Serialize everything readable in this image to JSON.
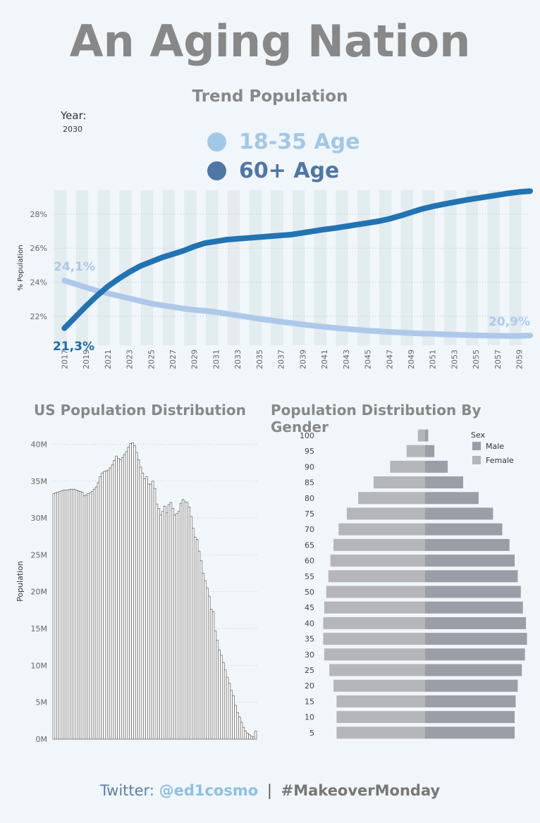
{
  "title": "An Aging Nation",
  "trend_title": "Trend Population",
  "year_filter": {
    "label": "Year:",
    "value": "2030"
  },
  "legend": [
    {
      "label": "18-35 Age",
      "color": "#a2c8e8"
    },
    {
      "label": "60+ Age",
      "color": "#4f76a6"
    }
  ],
  "distribution_title": "US Population Distribution",
  "gender_title": "Population Distribution By Gender",
  "footer": {
    "prefix": "Twitter:",
    "handle": "@ed1cosmo",
    "separator": "|",
    "hashtag": "#MakeoverMonday"
  },
  "chart_data": [
    {
      "type": "line",
      "ylabel": "% Population",
      "ylim": [
        20.3,
        29.4
      ],
      "yticks": [
        "22%",
        "24%",
        "26%",
        "28%"
      ],
      "x_tick_labels": [
        "2017",
        "2019",
        "2021",
        "2023",
        "2025",
        "2027",
        "2029",
        "2031",
        "2033",
        "2035",
        "2037",
        "2039",
        "2041",
        "2043",
        "2045",
        "2047",
        "2049",
        "2051",
        "2053",
        "2055",
        "2057",
        "2059"
      ],
      "x_start": 2016,
      "x_end": 2060,
      "series": [
        {
          "name": "18-35 Age",
          "color": "#aec8ea",
          "start_label": "24,1%",
          "end_label": "20,9%",
          "values": [
            24.1,
            23.9,
            23.7,
            23.5,
            23.35,
            23.2,
            23.05,
            22.9,
            22.75,
            22.65,
            22.55,
            22.45,
            22.38,
            22.32,
            22.25,
            22.15,
            22.05,
            21.95,
            21.85,
            21.77,
            21.68,
            21.6,
            21.52,
            21.45,
            21.38,
            21.32,
            21.26,
            21.21,
            21.16,
            21.12,
            21.08,
            21.05,
            21.02,
            20.99,
            20.97,
            20.94,
            20.92,
            20.9,
            20.88,
            20.87,
            20.86,
            20.85,
            20.85,
            20.88
          ]
        },
        {
          "name": "60+ Age",
          "color": "#2273b2",
          "start_label": "21,3%",
          "values": [
            21.3,
            21.95,
            22.6,
            23.2,
            23.75,
            24.2,
            24.6,
            24.95,
            25.2,
            25.45,
            25.65,
            25.85,
            26.1,
            26.3,
            26.4,
            26.5,
            26.55,
            26.6,
            26.65,
            26.7,
            26.75,
            26.8,
            26.9,
            27.0,
            27.1,
            27.18,
            27.28,
            27.38,
            27.48,
            27.58,
            27.72,
            27.9,
            28.1,
            28.3,
            28.45,
            28.58,
            28.7,
            28.82,
            28.92,
            29.02,
            29.12,
            29.22,
            29.3,
            29.35
          ]
        }
      ]
    },
    {
      "type": "bar",
      "title": "US Population Distribution",
      "ylabel": "Population",
      "ylim": [
        0,
        41000000
      ],
      "yticks": [
        "0M",
        "5M",
        "10M",
        "15M",
        "20M",
        "25M",
        "30M",
        "35M",
        "40M"
      ],
      "values_millions": [
        33.3,
        33.4,
        33.5,
        33.6,
        33.7,
        33.8,
        33.8,
        33.8,
        33.9,
        33.9,
        33.9,
        33.8,
        33.7,
        33.6,
        33.5,
        33.0,
        33.1,
        33.3,
        33.4,
        33.6,
        33.9,
        34.2,
        34.8,
        35.6,
        36.1,
        36.3,
        36.4,
        36.5,
        36.8,
        37.2,
        37.8,
        38.4,
        38.1,
        37.9,
        38.2,
        38.6,
        39.0,
        39.6,
        40.1,
        40.2,
        39.8,
        38.9,
        37.9,
        36.9,
        36.1,
        35.3,
        35.6,
        34.6,
        34.6,
        35.0,
        34.0,
        31.9,
        31.3,
        30.4,
        30.9,
        31.6,
        30.7,
        31.8,
        32.1,
        31.3,
        30.4,
        30.6,
        30.9,
        32.0,
        32.5,
        32.2,
        32.1,
        31.5,
        30.2,
        28.6,
        27.4,
        27.1,
        25.5,
        24.2,
        22.5,
        21.5,
        20.5,
        19.4,
        17.6,
        17.3,
        14.7,
        13.4,
        12.1,
        11.4,
        10.4,
        9.4,
        8.4,
        7.6,
        6.6,
        5.9,
        4.6,
        3.6,
        3.0,
        2.3,
        1.6,
        1.1,
        0.8,
        0.6,
        0.4,
        0.3,
        1.1
      ]
    },
    {
      "type": "bar",
      "title": "Population Distribution By Gender",
      "orientation": "horizontal",
      "legend_title": "Sex",
      "categories": [
        "100",
        "95",
        "90",
        "85",
        "80",
        "75",
        "70",
        "65",
        "60",
        "55",
        "50",
        "45",
        "40",
        "35",
        "30",
        "25",
        "20",
        "15",
        "10",
        "5"
      ],
      "series": [
        {
          "name": "Male",
          "color": "#9a9ea6",
          "values": [
            0.3,
            0.9,
            2.2,
            3.7,
            5.2,
            6.6,
            7.5,
            8.2,
            8.7,
            9.0,
            9.3,
            9.5,
            9.8,
            9.9,
            9.7,
            9.4,
            9.0,
            8.8,
            8.7,
            8.7
          ]
        },
        {
          "name": "Female",
          "color": "#b4b6b9",
          "values": [
            0.7,
            1.8,
            3.4,
            5.0,
            6.5,
            7.6,
            8.4,
            8.9,
            9.2,
            9.4,
            9.6,
            9.8,
            9.9,
            9.9,
            9.8,
            9.3,
            8.9,
            8.6,
            8.6,
            8.6
          ]
        }
      ]
    }
  ]
}
